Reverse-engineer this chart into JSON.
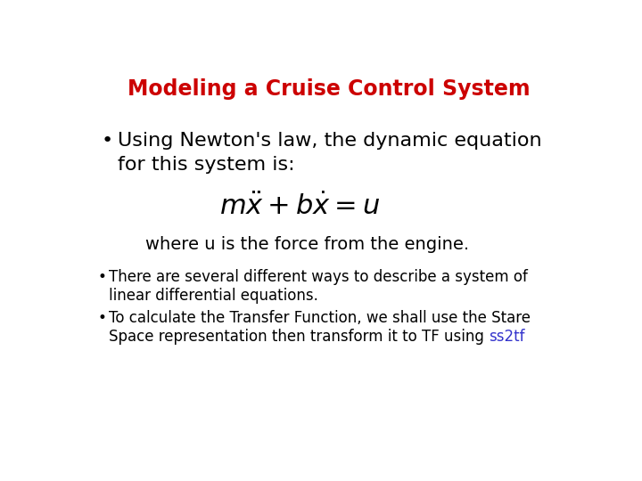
{
  "title": "Modeling a Cruise Control System",
  "title_color": "#cc0000",
  "title_fontsize": 17,
  "bg_color": "#ffffff",
  "bullet1_line1": "Using Newton's law, the dynamic equation",
  "bullet1_line2": "for this system is:",
  "equation": "$m\\ddot{x} + b\\dot{x} = u$",
  "equation_fontsize": 22,
  "where_text": "where u is the force from the engine.",
  "where_fontsize": 14,
  "bullet2_line1": "There are several different ways to describe a system of",
  "bullet2_line2": "linear differential equations.",
  "bullet3_line1": "To calculate the Transfer Function, we shall use the Stare",
  "bullet3_line2_normal": "Space representation then transform it to TF using ",
  "bullet3_line2_colored": "ss2tf",
  "ss2tf_color": "#3333cc",
  "small_fontsize": 12,
  "bullet_large_fontsize": 16,
  "text_color": "#000000",
  "bullet_symbol": "•"
}
